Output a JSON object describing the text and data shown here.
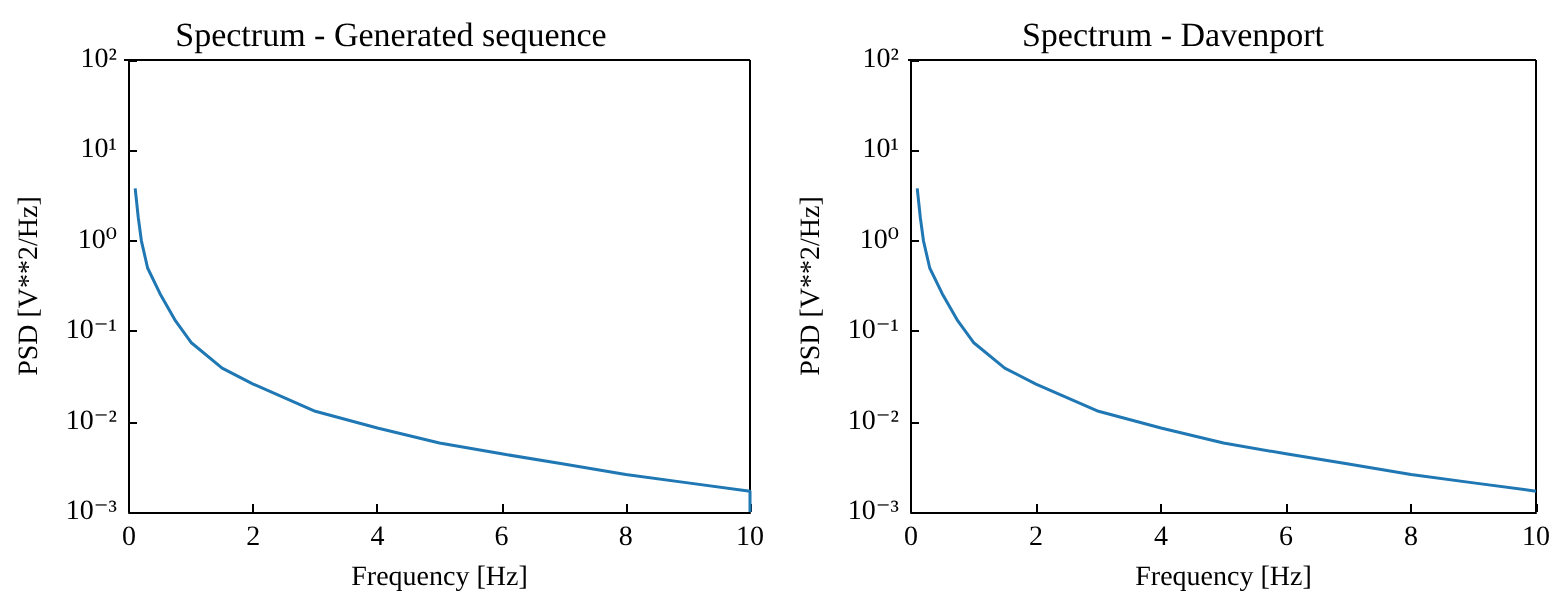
{
  "chart_data": [
    {
      "type": "line",
      "title": "Spectrum - Generated sequence",
      "xlabel": "Frequency [Hz]",
      "ylabel": "PSD [V**2/Hz]",
      "log": "y",
      "grid": false,
      "marker": "none",
      "line_style": "solid",
      "xlim": [
        0,
        10
      ],
      "xticks": [
        0,
        2,
        4,
        6,
        8,
        10
      ],
      "ylim": [
        0.001,
        100
      ],
      "yticks": [
        {
          "value": 0.001,
          "label": "10⁻³"
        },
        {
          "value": 0.01,
          "label": "10⁻²"
        },
        {
          "value": 0.1,
          "label": "10⁻¹"
        },
        {
          "value": 1,
          "label": "10⁰"
        },
        {
          "value": 10,
          "label": "10¹"
        },
        {
          "value": 100,
          "label": "10²"
        }
      ],
      "series": [
        {
          "color": "#1f77b4",
          "x": [
            0.1,
            0.15,
            0.2,
            0.3,
            0.5,
            0.75,
            1,
            1.5,
            2,
            3,
            4,
            5,
            6,
            7,
            8,
            9,
            10,
            10
          ],
          "values": [
            3.8,
            1.8,
            1.0,
            0.5,
            0.26,
            0.13,
            0.075,
            0.039,
            0.026,
            0.013,
            0.0085,
            0.0058,
            0.0044,
            0.0034,
            0.0026,
            0.0021,
            0.0017,
            0.001
          ]
        }
      ]
    },
    {
      "type": "line",
      "title": "Spectrum - Davenport",
      "xlabel": "Frequency [Hz]",
      "ylabel": "PSD [V**2/Hz]",
      "log": "y",
      "grid": false,
      "marker": "none",
      "line_style": "solid",
      "xlim": [
        0,
        10
      ],
      "xticks": [
        0,
        2,
        4,
        6,
        8,
        10
      ],
      "ylim": [
        0.001,
        100
      ],
      "yticks": [
        {
          "value": 0.001,
          "label": "10⁻³"
        },
        {
          "value": 0.01,
          "label": "10⁻²"
        },
        {
          "value": 0.1,
          "label": "10⁻¹"
        },
        {
          "value": 1,
          "label": "10⁰"
        },
        {
          "value": 10,
          "label": "10¹"
        },
        {
          "value": 100,
          "label": "10²"
        }
      ],
      "series": [
        {
          "color": "#1f77b4",
          "x": [
            0.1,
            0.15,
            0.2,
            0.3,
            0.5,
            0.75,
            1,
            1.5,
            2,
            3,
            4,
            5,
            6,
            7,
            8,
            9,
            10
          ],
          "values": [
            3.8,
            1.8,
            1.0,
            0.5,
            0.26,
            0.13,
            0.075,
            0.039,
            0.026,
            0.013,
            0.0085,
            0.0058,
            0.0044,
            0.0034,
            0.0026,
            0.0021,
            0.0017
          ]
        }
      ]
    }
  ]
}
